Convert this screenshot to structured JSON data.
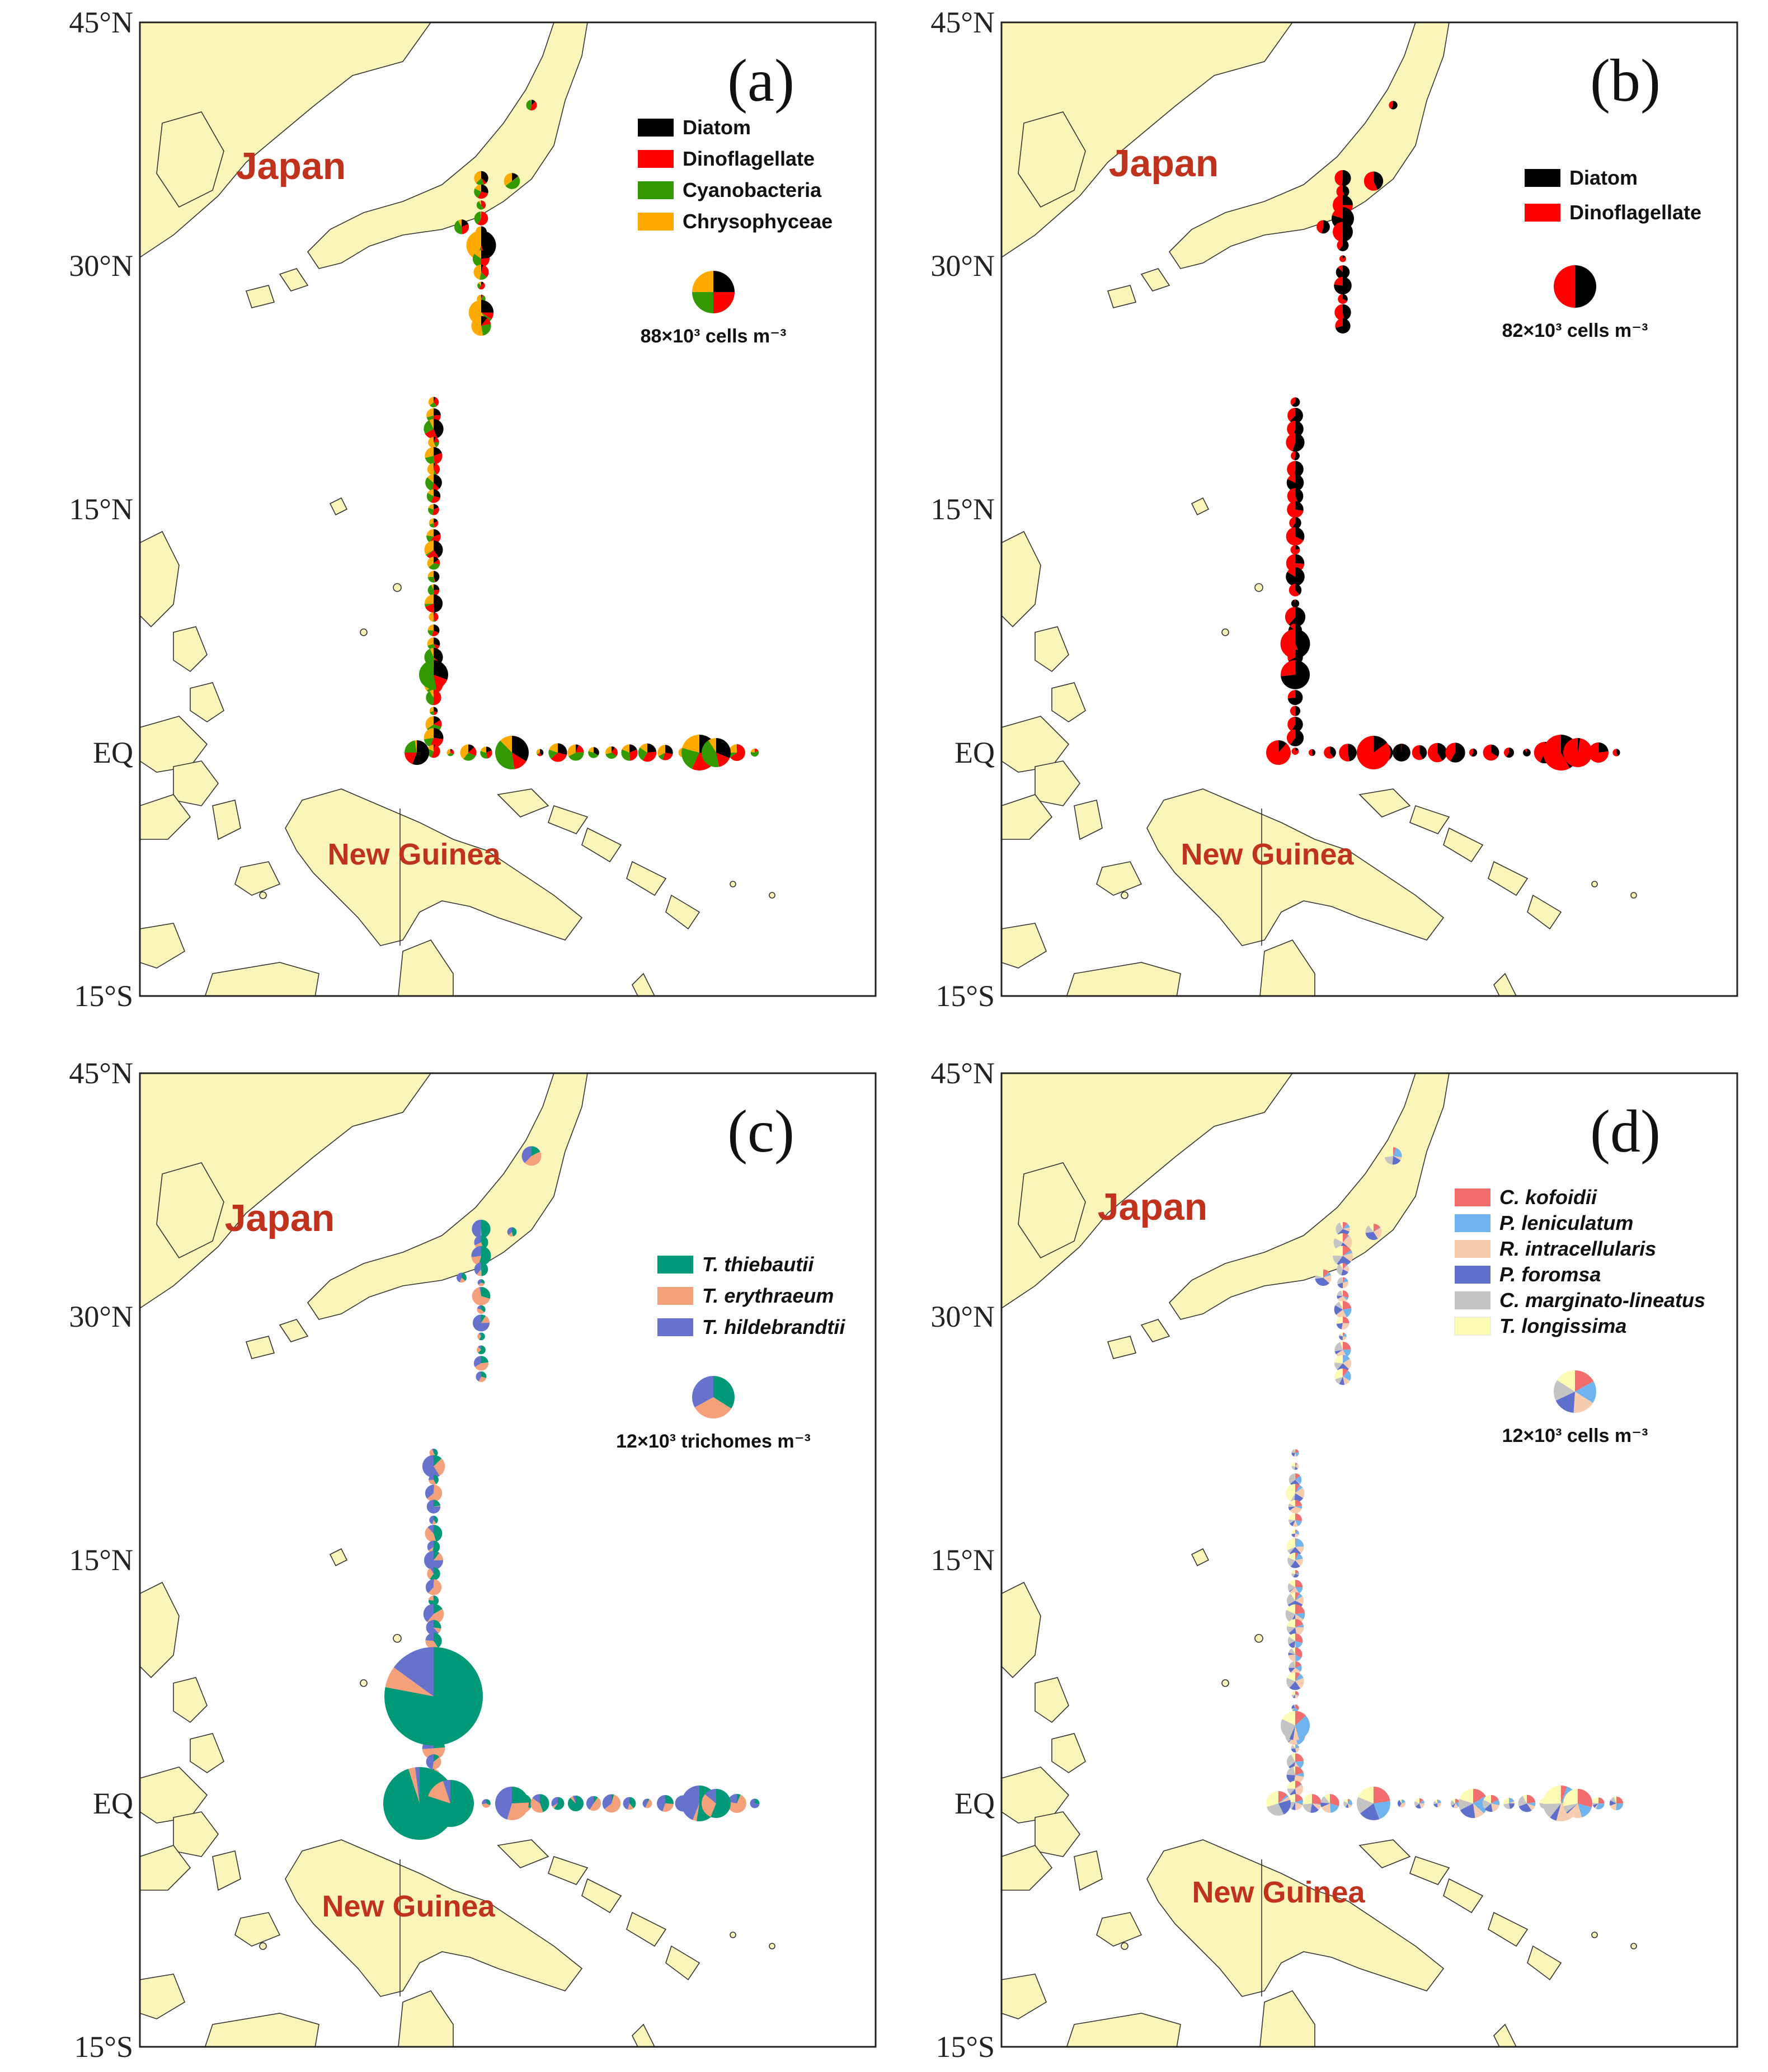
{
  "figure": {
    "axis_labels": [
      "45°N",
      "30°N",
      "15°N",
      "EQ",
      "15°S"
    ],
    "land_labels": {
      "japan": "Japan",
      "new_guinea": "New Guinea"
    }
  },
  "panels": [
    {
      "id": "a",
      "label": "(a)",
      "legend": [
        {
          "name": "Diatom",
          "color": "#000000",
          "italic": false
        },
        {
          "name": "Dinoflagellate",
          "color": "#ff0000",
          "italic": false
        },
        {
          "name": "Cyanobacteria",
          "color": "#339900",
          "italic": false
        },
        {
          "name": "Chrysophyceae",
          "color": "#ffaa00",
          "italic": false
        }
      ],
      "scale_text": "88×10³ cells m⁻³",
      "scale_fractions": [
        0.25,
        0.25,
        0.25,
        0.25
      ]
    },
    {
      "id": "b",
      "label": "(b)",
      "legend": [
        {
          "name": "Diatom",
          "color": "#000000",
          "italic": false
        },
        {
          "name": "Dinoflagellate",
          "color": "#ff0000",
          "italic": false
        }
      ],
      "scale_text": "82×10³ cells m⁻³",
      "scale_fractions": [
        0.5,
        0.5
      ]
    },
    {
      "id": "c",
      "label": "(c)",
      "legend": [
        {
          "name": "T. thiebautii",
          "color": "#009977",
          "italic": true
        },
        {
          "name": "T. erythraeum",
          "color": "#f4a07a",
          "italic": true
        },
        {
          "name": "T. hildebrandtii",
          "color": "#6672cc",
          "italic": true
        }
      ],
      "scale_text": "12×10³ trichomes m⁻³",
      "scale_fractions": [
        0.34,
        0.33,
        0.33
      ]
    },
    {
      "id": "d",
      "label": "(d)",
      "legend": [
        {
          "name": "C. kofoidii",
          "color": "#f26d6d",
          "italic": true
        },
        {
          "name": "P. leniculatum",
          "color": "#6fb4ee",
          "italic": true
        },
        {
          "name": "R. intracellularis",
          "color": "#f8ccae",
          "italic": true
        },
        {
          "name": "P. foromsa",
          "color": "#5e6fcc",
          "italic": true
        },
        {
          "name": "C. marginato-lineatus",
          "color": "#c4c4c4",
          "italic": true
        },
        {
          "name": "T. longissima",
          "color": "#fdfbb4",
          "italic": true
        }
      ],
      "scale_text": "12×10³ cells m⁻³",
      "scale_fractions": [
        0.17,
        0.17,
        0.17,
        0.17,
        0.16,
        0.16
      ]
    }
  ]
}
